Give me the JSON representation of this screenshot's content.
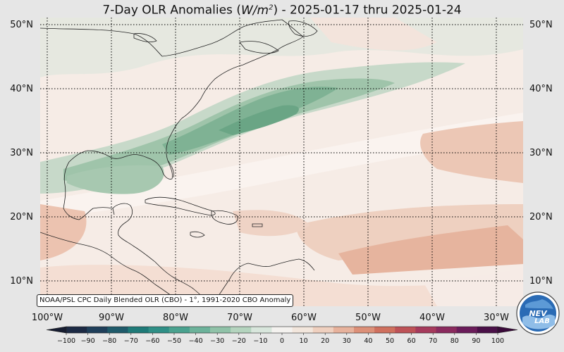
{
  "title": {
    "prefix": "7-Day OLR Anomalies (",
    "unit_base": "W/m",
    "unit_exp": "2",
    "suffix": ") - 2025-01-17 thru 2025-01-24"
  },
  "map": {
    "lat_labels": [
      "10°N",
      "20°N",
      "30°N",
      "40°N",
      "50°N"
    ],
    "lon_labels": [
      "100°W",
      "90°W",
      "80°W",
      "70°W",
      "60°W",
      "50°W",
      "40°W",
      "30°W"
    ],
    "lat_range": [
      5,
      52
    ],
    "lon_range": [
      -101,
      -25
    ],
    "gridlines": true,
    "projection": "equirectangular"
  },
  "credit": "NOAA/PSL CPC Daily Blended OLR (CBO) - 1°, 1991-2020 CBO Anomaly",
  "logo": {
    "text": "NEVLAB"
  },
  "colorbar": {
    "ticks": [
      "−100",
      "−90",
      "−80",
      "−70",
      "−60",
      "−50",
      "−40",
      "−30",
      "−20",
      "−10",
      "0",
      "10",
      "20",
      "30",
      "40",
      "50",
      "60",
      "70",
      "80",
      "90",
      "100"
    ],
    "colors": [
      "#1c2a44",
      "#1f3f5a",
      "#1f5a6a",
      "#1f7a78",
      "#2f8f86",
      "#4aa28f",
      "#6cb29a",
      "#90c2a8",
      "#b4d4be",
      "#d8e6dc",
      "#f4f2ef",
      "#f2e6dc",
      "#efd0bf",
      "#e7b29c",
      "#dc9078",
      "#cf705e",
      "#bd5257",
      "#a53a5c",
      "#8a2a5e",
      "#6a1c5a",
      "#4a1048"
    ]
  }
}
